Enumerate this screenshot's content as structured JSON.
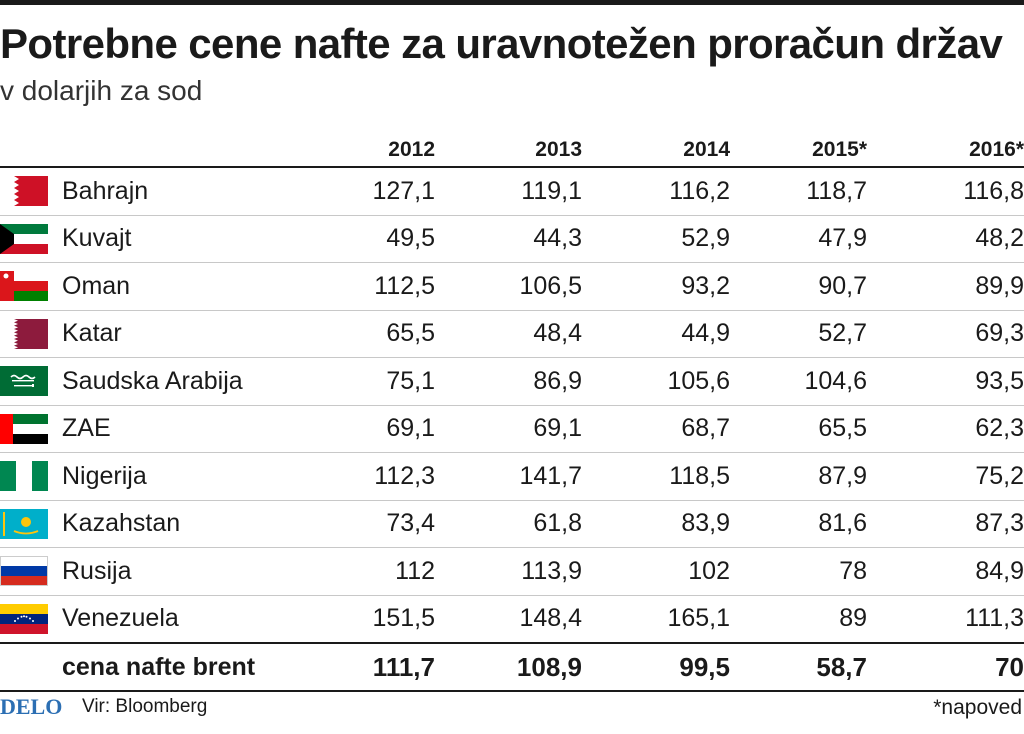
{
  "title": "Potrebne cene nafte za uravnotežen proračun držav",
  "subtitle": "v dolarjih za sod",
  "chart_data": {
    "type": "table",
    "columns": [
      "2012",
      "2013",
      "2014",
      "2015*",
      "2016*"
    ],
    "rows": [
      {
        "country": "Bahrajn",
        "flag": "bahrain-flag-icon",
        "values": [
          "127,1",
          "119,1",
          "116,2",
          "118,7",
          "116,8"
        ]
      },
      {
        "country": "Kuvajt",
        "flag": "kuwait-flag-icon",
        "values": [
          "49,5",
          "44,3",
          "52,9",
          "47,9",
          "48,2"
        ]
      },
      {
        "country": "Oman",
        "flag": "oman-flag-icon",
        "values": [
          "112,5",
          "106,5",
          "93,2",
          "90,7",
          "89,9"
        ]
      },
      {
        "country": "Katar",
        "flag": "qatar-flag-icon",
        "values": [
          "65,5",
          "48,4",
          "44,9",
          "52,7",
          "69,3"
        ]
      },
      {
        "country": "Saudska Arabija",
        "flag": "saudi-arabia-flag-icon",
        "values": [
          "75,1",
          "86,9",
          "105,6",
          "104,6",
          "93,5"
        ]
      },
      {
        "country": "ZAE",
        "flag": "uae-flag-icon",
        "values": [
          "69,1",
          "69,1",
          "68,7",
          "65,5",
          "62,3"
        ]
      },
      {
        "country": "Nigerija",
        "flag": "nigeria-flag-icon",
        "values": [
          "112,3",
          "141,7",
          "118,5",
          "87,9",
          "75,2"
        ]
      },
      {
        "country": "Kazahstan",
        "flag": "kazakhstan-flag-icon",
        "values": [
          "73,4",
          "61,8",
          "83,9",
          "81,6",
          "87,3"
        ]
      },
      {
        "country": "Rusija",
        "flag": "russia-flag-icon",
        "values": [
          "112",
          "113,9",
          "102",
          "78",
          "84,9"
        ]
      },
      {
        "country": "Venezuela",
        "flag": "venezuela-flag-icon",
        "values": [
          "151,5",
          "148,4",
          "165,1",
          "89",
          "111,3"
        ]
      }
    ],
    "total": {
      "label": "cena nafte brent",
      "values": [
        "111,7",
        "108,9",
        "99,5",
        "58,7",
        "70"
      ]
    }
  },
  "footer": {
    "logo": "DELO",
    "source": "Vir: Bloomberg",
    "note": "*napoved"
  }
}
